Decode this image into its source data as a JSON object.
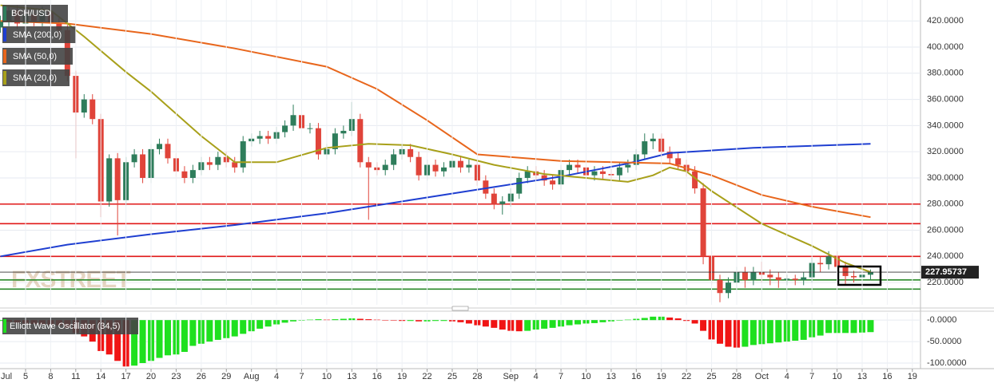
{
  "chart_data": [
    {
      "type": "candlestick",
      "title": "BCH/USD",
      "x": [
        "Jul 2",
        "Jul 3",
        "Jul 4",
        "Jul 5",
        "Jul 6",
        "Jul 7",
        "Jul 8",
        "Jul 9",
        "Jul 10",
        "Jul 11",
        "Jul 12",
        "Jul 13",
        "Jul 14",
        "Jul 15",
        "Jul 16",
        "Jul 17",
        "Jul 18",
        "Jul 19",
        "Jul 20",
        "Jul 21",
        "Jul 22",
        "Jul 23",
        "Jul 24",
        "Jul 25",
        "Jul 26",
        "Jul 27",
        "Jul 28",
        "Jul 29",
        "Jul 30",
        "Jul 31",
        "Aug 1",
        "Aug 2",
        "Aug 3",
        "Aug 4",
        "Aug 5",
        "Aug 6",
        "Aug 7",
        "Aug 8",
        "Aug 9",
        "Aug 10",
        "Aug 11",
        "Aug 12",
        "Aug 13",
        "Aug 14",
        "Aug 15",
        "Aug 16",
        "Aug 17",
        "Aug 18",
        "Aug 19",
        "Aug 20",
        "Aug 21",
        "Aug 22",
        "Aug 23",
        "Aug 24",
        "Aug 25",
        "Aug 26",
        "Aug 27",
        "Aug 28",
        "Aug 29",
        "Aug 30",
        "Aug 31",
        "Sep 1",
        "Sep 2",
        "Sep 3",
        "Sep 4",
        "Sep 5",
        "Sep 6",
        "Sep 7",
        "Sep 8",
        "Sep 9",
        "Sep 10",
        "Sep 11",
        "Sep 12",
        "Sep 13",
        "Sep 14",
        "Sep 15",
        "Sep 16",
        "Sep 17",
        "Sep 18",
        "Sep 19",
        "Sep 20",
        "Sep 21",
        "Sep 22",
        "Sep 23",
        "Sep 24",
        "Sep 25",
        "Sep 26",
        "Sep 27",
        "Sep 28",
        "Sep 29",
        "Sep 30",
        "Oct 1",
        "Oct 2",
        "Oct 3",
        "Oct 4",
        "Oct 5",
        "Oct 6",
        "Oct 7",
        "Oct 8",
        "Oct 9",
        "Oct 10",
        "Oct 11",
        "Oct 12",
        "Oct 13",
        "Oct 14"
      ],
      "open": [
        415,
        420,
        428,
        418,
        425,
        420,
        427,
        418,
        413,
        378,
        350,
        360,
        345,
        282,
        315,
        283,
        312,
        318,
        300,
        322,
        326,
        315,
        305,
        300,
        306,
        312,
        310,
        316,
        312,
        308,
        328,
        330,
        332,
        330,
        335,
        340,
        348,
        338,
        338,
        318,
        322,
        334,
        336,
        345,
        312,
        308,
        306,
        310,
        318,
        322,
        316,
        302,
        310,
        305,
        308,
        313,
        308,
        310,
        298,
        288,
        280,
        282,
        288,
        300,
        305,
        302,
        298,
        295,
        306,
        310,
        308,
        302,
        305,
        303,
        302,
        308,
        310,
        318,
        328,
        330,
        320,
        315,
        310,
        305,
        292,
        240,
        222,
        212,
        220,
        228,
        222,
        228,
        226,
        224,
        222,
        223,
        222,
        224,
        235,
        234,
        240,
        232,
        225,
        224,
        226
      ],
      "high": [
        424,
        432,
        432,
        429,
        429,
        431,
        431,
        422,
        417,
        382,
        364,
        364,
        349,
        318,
        319,
        316,
        322,
        322,
        326,
        330,
        330,
        319,
        309,
        310,
        316,
        316,
        320,
        320,
        316,
        332,
        334,
        336,
        336,
        339,
        344,
        356,
        352,
        342,
        342,
        326,
        338,
        340,
        358,
        349,
        316,
        312,
        314,
        322,
        326,
        326,
        320,
        314,
        314,
        312,
        317,
        317,
        314,
        314,
        302,
        292,
        286,
        292,
        304,
        309,
        309,
        306,
        302,
        310,
        314,
        314,
        312,
        309,
        309,
        307,
        312,
        314,
        322,
        334,
        334,
        334,
        324,
        319,
        314,
        309,
        296,
        244,
        226,
        224,
        232,
        232,
        232,
        236,
        230,
        228,
        226,
        226,
        228,
        239,
        240,
        244,
        244,
        236,
        229,
        230,
        230
      ],
      "low": [
        411,
        416,
        414,
        414,
        416,
        416,
        414,
        409,
        374,
        315,
        346,
        341,
        270,
        278,
        256,
        279,
        308,
        296,
        296,
        318,
        311,
        301,
        296,
        296,
        302,
        306,
        306,
        308,
        304,
        304,
        324,
        326,
        326,
        326,
        331,
        336,
        334,
        334,
        314,
        314,
        318,
        330,
        332,
        308,
        268,
        302,
        302,
        306,
        314,
        312,
        298,
        298,
        301,
        301,
        304,
        304,
        304,
        294,
        284,
        276,
        272,
        278,
        284,
        296,
        298,
        294,
        291,
        291,
        302,
        304,
        298,
        298,
        299,
        298,
        298,
        304,
        306,
        314,
        322,
        316,
        311,
        306,
        301,
        288,
        234,
        218,
        205,
        208,
        216,
        216,
        218,
        220,
        218,
        216,
        218,
        218,
        218,
        220,
        228,
        230,
        228,
        218,
        220,
        221,
        222
      ],
      "close": [
        420,
        428,
        418,
        425,
        420,
        427,
        418,
        413,
        378,
        350,
        360,
        345,
        282,
        315,
        283,
        312,
        318,
        300,
        322,
        326,
        315,
        305,
        300,
        306,
        312,
        310,
        316,
        312,
        308,
        328,
        330,
        332,
        330,
        335,
        340,
        348,
        338,
        338,
        318,
        322,
        334,
        336,
        345,
        312,
        308,
        306,
        310,
        318,
        322,
        316,
        302,
        310,
        305,
        308,
        313,
        308,
        310,
        298,
        288,
        280,
        282,
        288,
        300,
        305,
        302,
        298,
        295,
        306,
        310,
        308,
        302,
        305,
        303,
        302,
        308,
        310,
        318,
        328,
        330,
        320,
        315,
        310,
        305,
        292,
        240,
        222,
        212,
        220,
        228,
        222,
        228,
        226,
        224,
        222,
        223,
        222,
        224,
        235,
        234,
        240,
        232,
        225,
        224,
        226,
        228
      ],
      "colors": {
        "up": "#2e7d5b",
        "down": "#e0443a"
      },
      "series": [
        {
          "name": "SMA (200,0)",
          "color": "#1f3fd1",
          "x": [
            "Jul 2",
            "Jul 10",
            "Jul 20",
            "Jul 30",
            "Aug 10",
            "Aug 20",
            "Aug 30",
            "Sep 7",
            "Sep 15",
            "Sep 20",
            "Sep 30",
            "Oct 14"
          ],
          "values": [
            240,
            249,
            257,
            264,
            273,
            283,
            293,
            301,
            311,
            319,
            323,
            326
          ]
        },
        {
          "name": "SMA (50,0)",
          "color": "#e8661c",
          "x": [
            "Jul 2",
            "Jul 10",
            "Jul 20",
            "Jul 30",
            "Aug 10",
            "Aug 16",
            "Aug 22",
            "Aug 28",
            "Sep 7",
            "Sep 20",
            "Sep 25",
            "Oct 1",
            "Oct 7",
            "Oct 14"
          ],
          "values": [
            420,
            418,
            410,
            399,
            385,
            368,
            344,
            318,
            313,
            311,
            302,
            287,
            278,
            270
          ]
        },
        {
          "name": "SMA (20,0)",
          "color": "#a8a01a",
          "x": [
            "Jul 2",
            "Jul 8",
            "Jul 12",
            "Jul 17",
            "Jul 20",
            "Jul 26",
            "Jul 30",
            "Aug 4",
            "Aug 10",
            "Aug 15",
            "Aug 20",
            "Aug 25",
            "Aug 30",
            "Sep 5",
            "Sep 10",
            "Sep 15",
            "Sep 18",
            "Sep 20",
            "Sep 22",
            "Sep 25",
            "Oct 1",
            "Oct 7",
            "Oct 11",
            "Oct 14"
          ],
          "values": [
            432,
            428,
            408,
            381,
            366,
            332,
            312,
            312,
            323,
            326,
            325,
            318,
            310,
            303,
            300,
            297,
            302,
            308,
            305,
            290,
            265,
            248,
            235,
            228
          ]
        }
      ],
      "hlines": [
        {
          "value": 280,
          "color": "#e01818"
        },
        {
          "value": 265,
          "color": "#e01818"
        },
        {
          "value": 240,
          "color": "#e01818"
        },
        {
          "value": 222,
          "color": "#2a8a2a"
        },
        {
          "value": 215,
          "color": "#2a8a2a"
        }
      ],
      "last_price": {
        "value": 227.95737,
        "label": "227.95737"
      },
      "watermark": "FXSTREET",
      "ylim": [
        203,
        436
      ],
      "yticks": [
        {
          "value": 220,
          "label": "220.0000"
        },
        {
          "value": 240,
          "label": "240.0000"
        },
        {
          "value": 260,
          "label": "260.0000"
        },
        {
          "value": 280,
          "label": "280.0000"
        },
        {
          "value": 300,
          "label": "300.0000"
        },
        {
          "value": 320,
          "label": "320.0000"
        },
        {
          "value": 340,
          "label": "340.0000"
        },
        {
          "value": 360,
          "label": "360.0000"
        },
        {
          "value": 380,
          "label": "380.0000"
        },
        {
          "value": 400,
          "label": "400.0000"
        },
        {
          "value": 420,
          "label": "420.0000"
        }
      ],
      "grid": true
    },
    {
      "type": "bar",
      "title": "Elliott Wave Oscillator (34,5)",
      "x": [
        "Jul 2",
        "Jul 3",
        "Jul 4",
        "Jul 5",
        "Jul 6",
        "Jul 7",
        "Jul 8",
        "Jul 9",
        "Jul 10",
        "Jul 11",
        "Jul 12",
        "Jul 13",
        "Jul 14",
        "Jul 15",
        "Jul 16",
        "Jul 17",
        "Jul 18",
        "Jul 19",
        "Jul 20",
        "Jul 21",
        "Jul 22",
        "Jul 23",
        "Jul 24",
        "Jul 25",
        "Jul 26",
        "Jul 27",
        "Jul 28",
        "Jul 29",
        "Jul 30",
        "Jul 31",
        "Aug 1",
        "Aug 2",
        "Aug 3",
        "Aug 4",
        "Aug 5",
        "Aug 6",
        "Aug 7",
        "Aug 8",
        "Aug 9",
        "Aug 10",
        "Aug 11",
        "Aug 12",
        "Aug 13",
        "Aug 14",
        "Aug 15",
        "Aug 16",
        "Aug 17",
        "Aug 18",
        "Aug 19",
        "Aug 20",
        "Aug 21",
        "Aug 22",
        "Aug 23",
        "Aug 24",
        "Aug 25",
        "Aug 26",
        "Aug 27",
        "Aug 28",
        "Aug 29",
        "Aug 30",
        "Aug 31",
        "Sep 1",
        "Sep 2",
        "Sep 3",
        "Sep 4",
        "Sep 5",
        "Sep 6",
        "Sep 7",
        "Sep 8",
        "Sep 9",
        "Sep 10",
        "Sep 11",
        "Sep 12",
        "Sep 13",
        "Sep 14",
        "Sep 15",
        "Sep 16",
        "Sep 17",
        "Sep 18",
        "Sep 19",
        "Sep 20",
        "Sep 21",
        "Sep 22",
        "Sep 23",
        "Sep 24",
        "Sep 25",
        "Sep 26",
        "Sep 27",
        "Sep 28",
        "Sep 29",
        "Sep 30",
        "Oct 1",
        "Oct 2",
        "Oct 3",
        "Oct 4",
        "Oct 5",
        "Oct 6",
        "Oct 7",
        "Oct 8",
        "Oct 9",
        "Oct 10",
        "Oct 11",
        "Oct 12",
        "Oct 13",
        "Oct 14"
      ],
      "values": [
        -2,
        -4,
        -6,
        -8,
        -9,
        -10,
        -11,
        -12,
        -18,
        -30,
        -38,
        -50,
        -72,
        -80,
        -95,
        -108,
        -106,
        -100,
        -95,
        -88,
        -82,
        -80,
        -74,
        -60,
        -55,
        -50,
        -46,
        -42,
        -38,
        -32,
        -26,
        -20,
        -15,
        -10,
        -6,
        -3,
        -1,
        1,
        2,
        1,
        2,
        3,
        4,
        3,
        2,
        1,
        0,
        -1,
        -2,
        -2,
        -3,
        -3,
        -2,
        -2,
        -3,
        -5,
        -8,
        -12,
        -15,
        -18,
        -22,
        -25,
        -26,
        -25,
        -22,
        -20,
        -18,
        -15,
        -12,
        -10,
        -8,
        -7,
        -5,
        -3,
        -1,
        1,
        3,
        5,
        8,
        8,
        6,
        4,
        -2,
        -8,
        -25,
        -45,
        -55,
        -62,
        -64,
        -62,
        -58,
        -56,
        -54,
        -52,
        -50,
        -48,
        -46,
        -40,
        -36,
        -30,
        -30,
        -30,
        -30,
        -29,
        -28
      ],
      "colors": {
        "up": "#1fe01f",
        "down": "#f01414"
      },
      "ylim": [
        -113,
        17
      ],
      "yticks": [
        {
          "value": 0,
          "label": "-0.0000"
        },
        {
          "value": -50,
          "label": "-50.0000"
        },
        {
          "value": -100,
          "label": "-100.0000"
        }
      ],
      "xticks": [
        "Jul",
        "5",
        "8",
        "11",
        "14",
        "17",
        "20",
        "23",
        "26",
        "29",
        "Aug",
        "4",
        "7",
        "10",
        "13",
        "16",
        "19",
        "22",
        "25",
        "28",
        "Sep",
        "4",
        "7",
        "10",
        "13",
        "16",
        "19",
        "22",
        "25",
        "28",
        "Oct",
        "4",
        "7",
        "10",
        "13",
        "16",
        "19"
      ],
      "grid": true
    }
  ]
}
